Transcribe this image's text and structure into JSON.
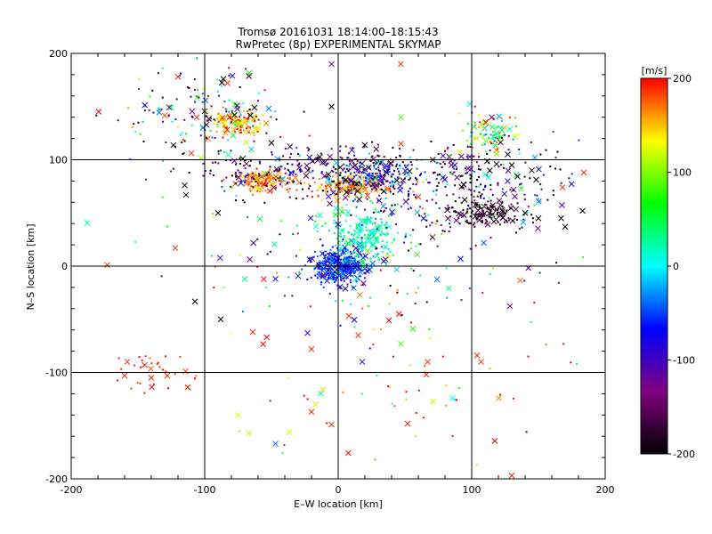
{
  "chart_data": {
    "type": "scatter",
    "title": "Tromsø 20161031 18:14:00–18:15:43",
    "subtitle": "RwPretec (8p) EXPERIMENTAL SKYMAP",
    "xlabel": "E–W location [km]",
    "ylabel": "N–S location [km]",
    "xlim": [
      -200,
      200
    ],
    "ylim": [
      -200,
      200
    ],
    "xticks": [
      -200,
      -100,
      0,
      100,
      200
    ],
    "yticks": [
      -200,
      -100,
      0,
      100,
      200
    ],
    "grid": true,
    "colorbar": {
      "label": "[m/s]",
      "range": [
        -200,
        200
      ],
      "ticks": [
        200,
        100,
        0,
        -100,
        -200
      ],
      "colors": [
        "#000000",
        "#800080",
        "#0000ff",
        "#00ffff",
        "#00ff00",
        "#ffff00",
        "#ff0000"
      ]
    },
    "clusters": [
      {
        "x": 0,
        "y": 0,
        "sx": 10,
        "sy": 8,
        "n": 420,
        "v": -60,
        "vs": 25
      },
      {
        "x": 20,
        "y": 30,
        "sx": 14,
        "sy": 14,
        "n": 220,
        "v": 20,
        "vs": 25
      },
      {
        "x": 10,
        "y": 75,
        "sx": 14,
        "sy": 5,
        "n": 160,
        "v": 165,
        "vs": 20
      },
      {
        "x": -55,
        "y": 80,
        "sx": 10,
        "sy": 5,
        "n": 140,
        "v": 170,
        "vs": 25
      },
      {
        "x": -75,
        "y": 135,
        "sx": 10,
        "sy": 6,
        "n": 140,
        "v": 160,
        "vs": 45
      },
      {
        "x": 110,
        "y": 50,
        "sx": 14,
        "sy": 6,
        "n": 130,
        "v": -180,
        "vs": 15
      },
      {
        "x": 30,
        "y": 85,
        "sx": 12,
        "sy": 6,
        "n": 110,
        "v": -70,
        "vs": 40
      },
      {
        "x": -10,
        "y": 90,
        "sx": 50,
        "sy": 12,
        "n": 320,
        "v": -150,
        "vs": 70
      },
      {
        "x": 90,
        "y": 75,
        "sx": 45,
        "sy": 20,
        "n": 260,
        "v": -140,
        "vs": 90
      },
      {
        "x": 115,
        "y": 125,
        "sx": 10,
        "sy": 10,
        "n": 90,
        "v": 90,
        "vs": 70
      },
      {
        "x": -100,
        "y": 140,
        "sx": 30,
        "sy": 25,
        "n": 150,
        "v": -60,
        "vs": 150
      },
      {
        "x": 20,
        "y": 10,
        "sx": 70,
        "sy": 40,
        "n": 150,
        "v": -20,
        "vs": 120
      },
      {
        "x": 30,
        "y": -100,
        "sx": 80,
        "sy": 50,
        "n": 70,
        "v": 170,
        "vs": 80
      },
      {
        "x": -140,
        "y": -100,
        "sx": 15,
        "sy": 10,
        "n": 30,
        "v": 190,
        "vs": 10
      }
    ],
    "markers": [
      {
        "x": -173,
        "y": 1,
        "v": 190
      },
      {
        "x": -122,
        "y": 17,
        "v": 190
      },
      {
        "x": -115,
        "y": 76,
        "v": -200
      },
      {
        "x": -114,
        "y": 67,
        "v": -200
      },
      {
        "x": -110,
        "y": 106,
        "v": 190
      },
      {
        "x": -106,
        "y": 140,
        "v": 190
      },
      {
        "x": -120,
        "y": 178,
        "v": 190
      },
      {
        "x": -90,
        "y": 50,
        "v": -200
      },
      {
        "x": -88,
        "y": -50,
        "v": -200
      },
      {
        "x": -70,
        "y": -12,
        "v": 40
      },
      {
        "x": -64,
        "y": -62,
        "v": 190
      },
      {
        "x": -47,
        "y": -12,
        "v": -80
      },
      {
        "x": -23,
        "y": -63,
        "v": -100
      },
      {
        "x": -20,
        "y": -78,
        "v": 190
      },
      {
        "x": -13,
        "y": -120,
        "v": 20
      },
      {
        "x": -17,
        "y": -130,
        "v": 120
      },
      {
        "x": -20,
        "y": -137,
        "v": 190
      },
      {
        "x": -5,
        "y": -149,
        "v": 190
      },
      {
        "x": -75,
        "y": -140,
        "v": 120
      },
      {
        "x": -67,
        "y": -157,
        "v": 120
      },
      {
        "x": -47,
        "y": -167,
        "v": -40
      },
      {
        "x": -158,
        "y": -90,
        "v": 190
      },
      {
        "x": -160,
        "y": -103,
        "v": 190
      },
      {
        "x": -145,
        "y": -93,
        "v": 190
      },
      {
        "x": -140,
        "y": -105,
        "v": 190
      },
      {
        "x": -128,
        "y": -103,
        "v": 190
      },
      {
        "x": -5,
        "y": 190,
        "v": -120
      },
      {
        "x": 47,
        "y": 190,
        "v": 190
      },
      {
        "x": 47,
        "y": 140,
        "v": 80
      },
      {
        "x": 60,
        "y": 65,
        "v": 190
      },
      {
        "x": 8,
        "y": -47,
        "v": 190
      },
      {
        "x": 15,
        "y": -65,
        "v": 190
      },
      {
        "x": 18,
        "y": -90,
        "v": -90
      },
      {
        "x": 47,
        "y": -73,
        "v": 90
      },
      {
        "x": 67,
        "y": -90,
        "v": 190
      },
      {
        "x": 66,
        "y": -102,
        "v": 190
      },
      {
        "x": 52,
        "y": -148,
        "v": 190
      },
      {
        "x": 104,
        "y": -84,
        "v": 190
      },
      {
        "x": 107,
        "y": -90,
        "v": 190
      },
      {
        "x": 130,
        "y": -197,
        "v": 190
      },
      {
        "x": 140,
        "y": 50,
        "v": -200
      },
      {
        "x": 150,
        "y": 45,
        "v": -200
      },
      {
        "x": 167,
        "y": 45,
        "v": -200
      },
      {
        "x": 170,
        "y": 37,
        "v": -200
      },
      {
        "x": 183,
        "y": 52,
        "v": -200
      },
      {
        "x": 184,
        "y": 88,
        "v": 190
      },
      {
        "x": 168,
        "y": 74,
        "v": 190
      },
      {
        "x": 145,
        "y": 90,
        "v": -200
      },
      {
        "x": 130,
        "y": 95,
        "v": -200
      },
      {
        "x": 115,
        "y": 140,
        "v": -150
      },
      {
        "x": 127,
        "y": 105,
        "v": -200
      },
      {
        "x": 47,
        "y": 115,
        "v": 190
      },
      {
        "x": -5,
        "y": 150,
        "v": -200
      },
      {
        "x": -83,
        "y": 172,
        "v": 190
      }
    ]
  }
}
